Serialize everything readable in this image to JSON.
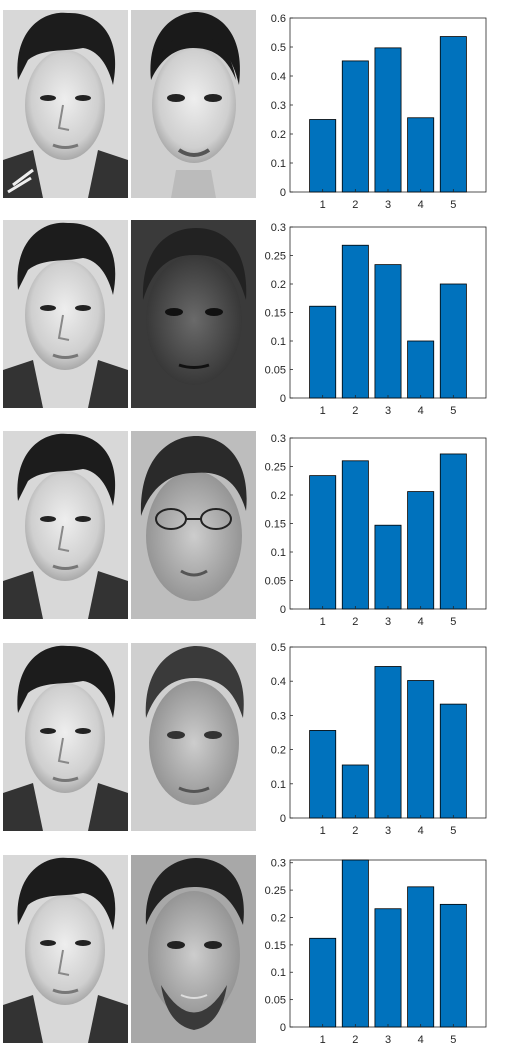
{
  "colors": {
    "bar_fill": "#0072bd",
    "bar_edge": "#000000",
    "axis": "#262626"
  },
  "rows": [
    {
      "left_image": "grayscale-face-photo-query",
      "right_image": "grayscale-face-photo-woman",
      "chart_data": {
        "type": "bar",
        "categories": [
          "1",
          "2",
          "3",
          "4",
          "5"
        ],
        "values": [
          0.25,
          0.452,
          0.497,
          0.256,
          0.536
        ],
        "ylim": [
          0,
          0.6
        ],
        "yticks": [
          "0",
          "0.1",
          "0.2",
          "0.3",
          "0.4",
          "0.5",
          "0.6"
        ],
        "title": "",
        "xlabel": "",
        "ylabel": "",
        "grid": false,
        "legend": "none"
      }
    },
    {
      "left_image": "grayscale-face-photo-query",
      "right_image": "dark-face-photo-man",
      "chart_data": {
        "type": "bar",
        "categories": [
          "1",
          "2",
          "3",
          "4",
          "5"
        ],
        "values": [
          0.161,
          0.268,
          0.234,
          0.1,
          0.2
        ],
        "ylim": [
          0,
          0.3
        ],
        "yticks": [
          "0",
          "0.05",
          "0.1",
          "0.15",
          "0.2",
          "0.25",
          "0.3"
        ],
        "title": "",
        "xlabel": "",
        "ylabel": "",
        "grid": false,
        "legend": "none"
      }
    },
    {
      "left_image": "grayscale-face-photo-query",
      "right_image": "face-photo-boy-with-glasses",
      "chart_data": {
        "type": "bar",
        "categories": [
          "1",
          "2",
          "3",
          "4",
          "5"
        ],
        "values": [
          0.234,
          0.26,
          0.147,
          0.206,
          0.272
        ],
        "ylim": [
          0,
          0.3
        ],
        "yticks": [
          "0",
          "0.05",
          "0.1",
          "0.15",
          "0.2",
          "0.25",
          "0.3"
        ],
        "title": "",
        "xlabel": "",
        "ylabel": "",
        "grid": false,
        "legend": "none"
      }
    },
    {
      "left_image": "grayscale-face-photo-query",
      "right_image": "face-photo-young-man",
      "chart_data": {
        "type": "bar",
        "categories": [
          "1",
          "2",
          "3",
          "4",
          "5"
        ],
        "values": [
          0.256,
          0.155,
          0.443,
          0.402,
          0.333
        ],
        "ylim": [
          0,
          0.5
        ],
        "yticks": [
          "0",
          "0.1",
          "0.2",
          "0.3",
          "0.4",
          "0.5"
        ],
        "title": "",
        "xlabel": "",
        "ylabel": "",
        "grid": false,
        "legend": "none"
      }
    },
    {
      "left_image": "grayscale-face-photo-query",
      "right_image": "face-photo-bearded-man",
      "chart_data": {
        "type": "bar",
        "categories": [
          "1",
          "2",
          "3",
          "4",
          "5"
        ],
        "values": [
          0.162,
          0.305,
          0.216,
          0.256,
          0.224
        ],
        "ylim": [
          0,
          0.305
        ],
        "yticks": [
          "0",
          "0.05",
          "0.1",
          "0.15",
          "0.2",
          "0.25",
          "0.3"
        ],
        "title": "",
        "xlabel": "",
        "ylabel": "",
        "grid": false,
        "legend": "none"
      }
    }
  ]
}
